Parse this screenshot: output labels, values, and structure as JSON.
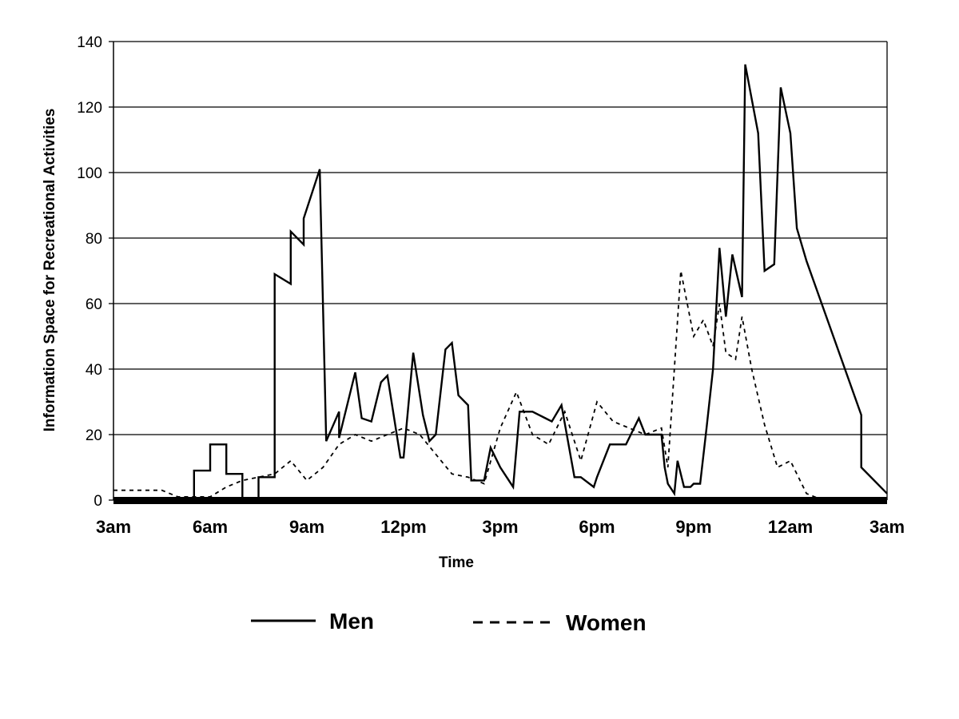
{
  "chart_data": {
    "type": "line",
    "title": "",
    "xlabel": "Time",
    "ylabel": "Information Space for Recreational Activities",
    "xlim": [
      0,
      24
    ],
    "ylim": [
      0,
      140
    ],
    "yticks": [
      0,
      20,
      40,
      60,
      80,
      100,
      120,
      140
    ],
    "x_tick_labels": [
      "3am",
      "6am",
      "9am",
      "12pm",
      "3pm",
      "6pm",
      "9pm",
      "12am",
      "3am"
    ],
    "x_tick_positions": [
      0,
      3,
      6,
      9,
      12,
      15,
      18,
      21,
      24
    ],
    "x_units": "hours after 3am",
    "grid": "horizontal",
    "legend_position": "bottom",
    "colors": {
      "men": "#000000",
      "women": "#000000"
    },
    "series": [
      {
        "name": "Men",
        "style": "solid",
        "x": [
          0,
          2.5,
          2.5,
          3.0,
          3.0,
          3.5,
          3.5,
          4.0,
          4.0,
          4.5,
          4.5,
          5.0,
          5.0,
          5.5,
          5.5,
          5.9,
          5.9,
          6.4,
          6.6,
          7.0,
          7.0,
          7.5,
          7.7,
          8.0,
          8.3,
          8.5,
          8.9,
          9.0,
          9.3,
          9.6,
          9.8,
          10.0,
          10.3,
          10.5,
          10.7,
          11.0,
          11.1,
          11.5,
          11.7,
          12.0,
          12.4,
          12.6,
          13.0,
          13.4,
          13.6,
          13.9,
          14.3,
          14.5,
          14.9,
          15.0,
          15.4,
          15.9,
          16.3,
          16.5,
          16.7,
          17.0,
          17.1,
          17.2,
          17.4,
          17.5,
          17.7,
          17.9,
          18.0,
          18.2,
          18.4,
          18.6,
          18.8,
          19.0,
          19.2,
          19.5,
          19.6,
          20.0,
          20.2,
          20.5,
          20.7,
          21.0,
          21.2,
          21.5,
          23.2,
          23.2,
          24
        ],
        "values": [
          0,
          0,
          9,
          9,
          17,
          17,
          8,
          8,
          0,
          0,
          7,
          7,
          69,
          66,
          82,
          78,
          86,
          101,
          18,
          27,
          19,
          39,
          25,
          24,
          36,
          38,
          13,
          13,
          45,
          26,
          18,
          20,
          46,
          48,
          32,
          29,
          6,
          6,
          16,
          10,
          4,
          27,
          27,
          25,
          24,
          29,
          7,
          7,
          4,
          7,
          17,
          17,
          25,
          20,
          20,
          20,
          10,
          5,
          2,
          12,
          4,
          4,
          5,
          5,
          22,
          40,
          77,
          56,
          75,
          62,
          133,
          112,
          70,
          72,
          126,
          112,
          83,
          73,
          26,
          10,
          2
        ]
      },
      {
        "name": "Women",
        "style": "dashed",
        "x": [
          0,
          1.5,
          2.0,
          3.0,
          3.5,
          4.0,
          4.5,
          5.0,
          5.5,
          6.0,
          6.5,
          7.0,
          7.5,
          8.0,
          8.5,
          9.0,
          9.5,
          10.0,
          10.5,
          11.0,
          11.5,
          12.0,
          12.5,
          13.0,
          13.5,
          14.0,
          14.5,
          15.0,
          15.5,
          16.0,
          16.5,
          17.0,
          17.2,
          17.6,
          18.0,
          18.3,
          18.6,
          18.8,
          19.0,
          19.3,
          19.5,
          19.8,
          20.2,
          20.6,
          21.0,
          21.5,
          22.0,
          23.0,
          24
        ],
        "values": [
          3,
          3,
          1,
          1,
          4,
          6,
          7,
          8,
          12,
          6,
          10,
          17,
          20,
          18,
          20,
          22,
          20,
          14,
          8,
          7,
          5,
          22,
          33,
          20,
          17,
          27,
          12,
          30,
          24,
          22,
          20,
          22,
          10,
          70,
          50,
          55,
          47,
          60,
          45,
          43,
          56,
          40,
          23,
          10,
          12,
          2,
          0,
          0,
          0
        ]
      }
    ]
  }
}
